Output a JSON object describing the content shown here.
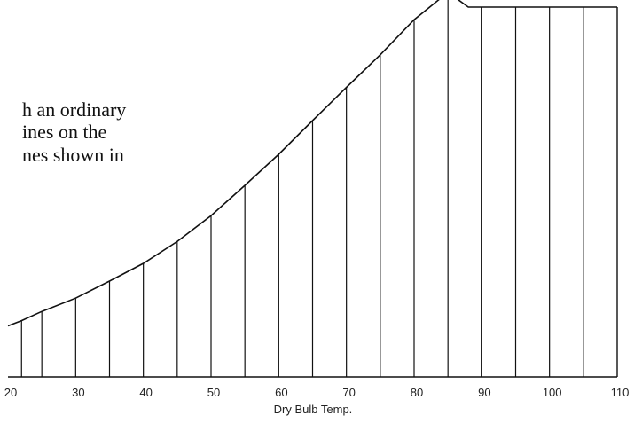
{
  "text_fragment": [
    "h an ordinary",
    "ines on the",
    "nes shown in"
  ],
  "chart_data": {
    "type": "area",
    "title": "",
    "xlabel": "Dry Bulb Temp.",
    "ylabel": "",
    "xlim": [
      20,
      110
    ],
    "ticks": [
      "20",
      "30",
      "40",
      "50",
      "60",
      "70",
      "80",
      "90",
      "100",
      "110"
    ],
    "grid_x_values": [
      22,
      25,
      30,
      35,
      40,
      45,
      50,
      55,
      60,
      65,
      70,
      75,
      80,
      85,
      90,
      95,
      100,
      105
    ],
    "curve_x": [
      20,
      22,
      25,
      30,
      35,
      40,
      45,
      50,
      55,
      60,
      65,
      70,
      75,
      80,
      85,
      88,
      90,
      95,
      100,
      105,
      110
    ],
    "curve_y": [
      0.138,
      0.152,
      0.177,
      0.213,
      0.259,
      0.307,
      0.366,
      0.436,
      0.518,
      0.602,
      0.693,
      0.783,
      0.871,
      0.966,
      1.04,
      1.0,
      1.0,
      1.0,
      1.0,
      1.0,
      1.0
    ],
    "grid": true,
    "color": "#111111"
  }
}
